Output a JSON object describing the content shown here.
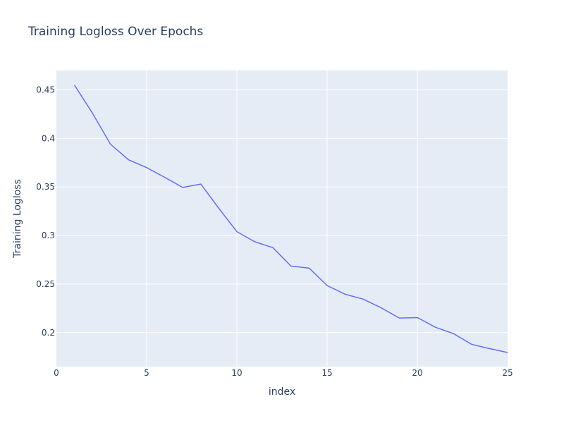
{
  "chart_data": {
    "type": "line",
    "title": "Training Logloss Over Epochs",
    "xlabel": "index",
    "ylabel": "Training Logloss",
    "xlim": [
      0,
      25
    ],
    "ylim": [
      0.165,
      0.47
    ],
    "x_ticks": [
      0,
      5,
      10,
      15,
      20,
      25
    ],
    "x_tick_labels": [
      "0",
      "5",
      "10",
      "15",
      "20",
      "25"
    ],
    "y_ticks": [
      0.2,
      0.25,
      0.3,
      0.35,
      0.4,
      0.45
    ],
    "y_tick_labels": [
      "0.2",
      "0.25",
      "0.3",
      "0.35",
      "0.4",
      "0.45"
    ],
    "grid": true,
    "legend": false,
    "colors": {
      "plot_bg": "#e5ecf6",
      "line": "#636efa",
      "text": "#2a3f5f",
      "grid": "#ffffff"
    },
    "x": [
      1,
      2,
      3,
      4,
      5,
      6,
      7,
      8,
      9,
      10,
      11,
      12,
      13,
      14,
      15,
      16,
      17,
      18,
      19,
      20,
      21,
      22,
      23,
      24,
      25
    ],
    "series": [
      {
        "values": [
          0.455,
          0.426,
          0.394,
          0.378,
          0.37,
          0.36,
          0.3495,
          0.353,
          0.328,
          0.304,
          0.2935,
          0.2875,
          0.2685,
          0.2665,
          0.2485,
          0.2395,
          0.2345,
          0.2255,
          0.215,
          0.2155,
          0.2055,
          0.199,
          0.188,
          0.1835,
          0.1795
        ]
      }
    ]
  }
}
